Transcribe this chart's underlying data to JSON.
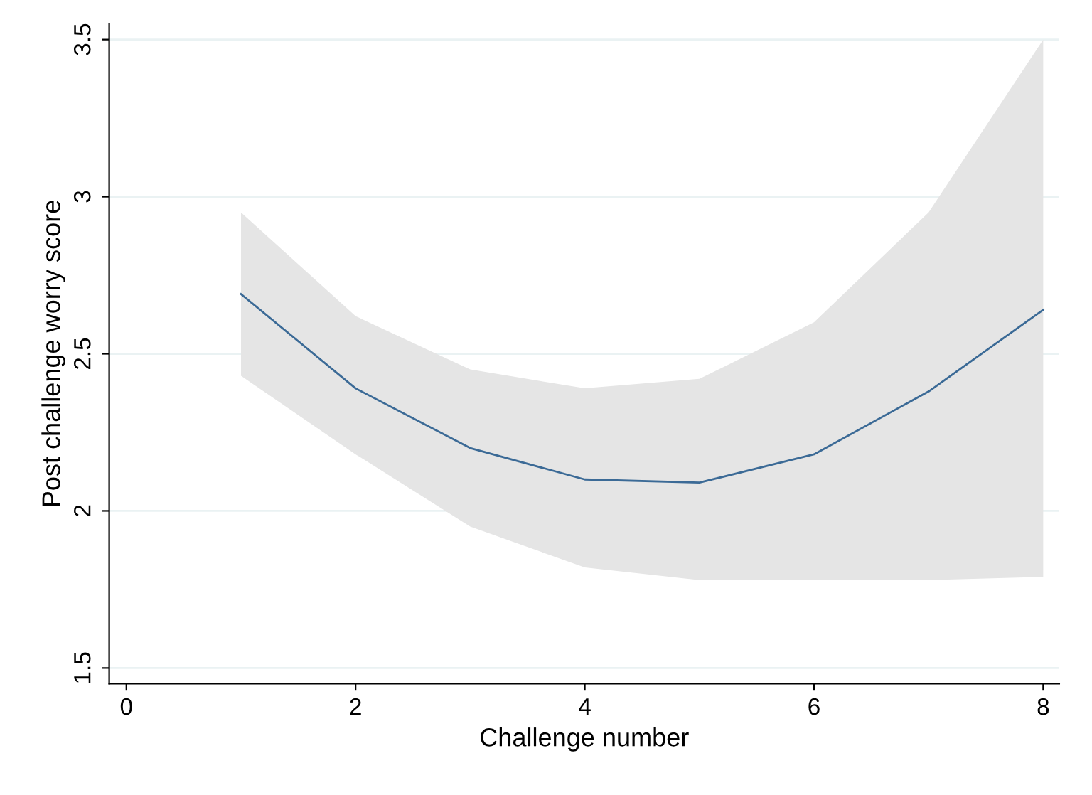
{
  "chart_data": {
    "type": "line",
    "xlabel": "Challenge number",
    "ylabel": "Post challenge worry score",
    "x": [
      1,
      2,
      3,
      4,
      5,
      6,
      7,
      8
    ],
    "series": [
      {
        "color": "#3b6a96",
        "values": [
          2.69,
          2.39,
          2.2,
          2.1,
          2.09,
          2.18,
          2.38,
          2.64
        ],
        "lower": [
          2.43,
          2.18,
          1.95,
          1.82,
          1.78,
          1.78,
          1.78,
          1.79
        ],
        "upper": [
          2.95,
          2.62,
          2.45,
          2.39,
          2.42,
          2.6,
          2.95,
          3.5
        ]
      }
    ],
    "xlim": [
      -0.15,
      8.14
    ],
    "ylim": [
      1.45,
      3.55
    ],
    "xticks": [
      0,
      2,
      4,
      6,
      8
    ],
    "yticks": [
      1.5,
      2,
      2.5,
      3,
      3.5
    ],
    "grid": "y",
    "marker": "none",
    "line_style": "solid"
  }
}
